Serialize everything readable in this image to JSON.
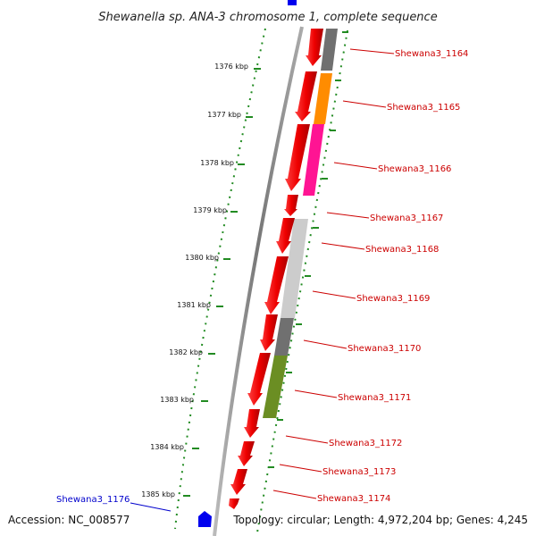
{
  "title": "Shewanella sp. ANA-3 chromosome 1, complete sequence",
  "footer": {
    "accession": "Accession: NC_008577",
    "summary": "Topology: circular; Length: 4,972,204 bp; Genes: 4,245"
  },
  "scale": {
    "ticks": [
      "1376 kbp",
      "1377 kbp",
      "1378 kbp",
      "1379 kbp",
      "1380 kbp",
      "1381 kbp",
      "1382 kbp",
      "1383 kbp",
      "1384 kbp",
      "1385 kbp"
    ]
  },
  "genes": [
    {
      "label": "Shewana3_1164",
      "color": "#cc0000"
    },
    {
      "label": "Shewana3_1165",
      "color": "#cc0000"
    },
    {
      "label": "Shewana3_1166",
      "color": "#cc0000"
    },
    {
      "label": "Shewana3_1167",
      "color": "#cc0000"
    },
    {
      "label": "Shewana3_1168",
      "color": "#cc0000"
    },
    {
      "label": "Shewana3_1169",
      "color": "#cc0000"
    },
    {
      "label": "Shewana3_1170",
      "color": "#cc0000"
    },
    {
      "label": "Shewana3_1171",
      "color": "#cc0000"
    },
    {
      "label": "Shewana3_1172",
      "color": "#cc0000"
    },
    {
      "label": "Shewana3_1173",
      "color": "#cc0000"
    },
    {
      "label": "Shewana3_1174",
      "color": "#cc0000"
    },
    {
      "label": "Shewana3_1176",
      "color": "#0000cc"
    }
  ],
  "colors": {
    "gene_red": "#ee1111",
    "cog_gray": "#707070",
    "cog_orange": "#ff8c00",
    "cog_pink": "#ff1493",
    "cog_navy": "#00008b",
    "cog_lightgray": "#cccccc",
    "cog_olive": "#6b8e23",
    "tick_green": "#228b22",
    "backbone": "#888888",
    "blue_gene": "#0000ee"
  }
}
